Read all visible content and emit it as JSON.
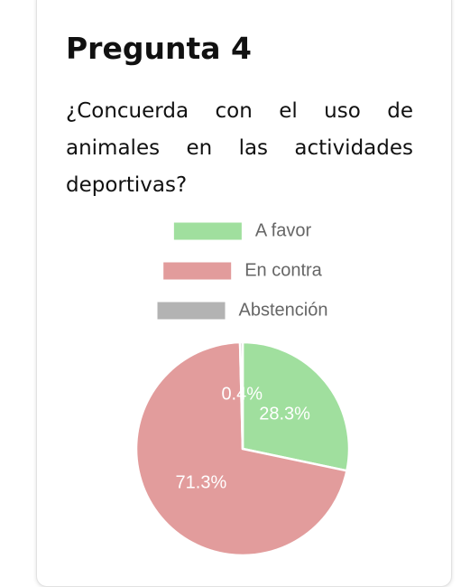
{
  "header": {
    "title": "Pregunta 4",
    "question": "¿Concuerda con el uso de animales en las actividades deportivas?"
  },
  "chart_data": {
    "type": "pie",
    "categories": [
      "A favor",
      "En contra",
      "Abstención"
    ],
    "values": [
      28.3,
      71.3,
      0.4
    ],
    "value_labels": [
      "28.3%",
      "71.3%",
      "0.4%"
    ],
    "colors": [
      "#a0df9e",
      "#e29c9c",
      "#b3b3b3"
    ]
  }
}
